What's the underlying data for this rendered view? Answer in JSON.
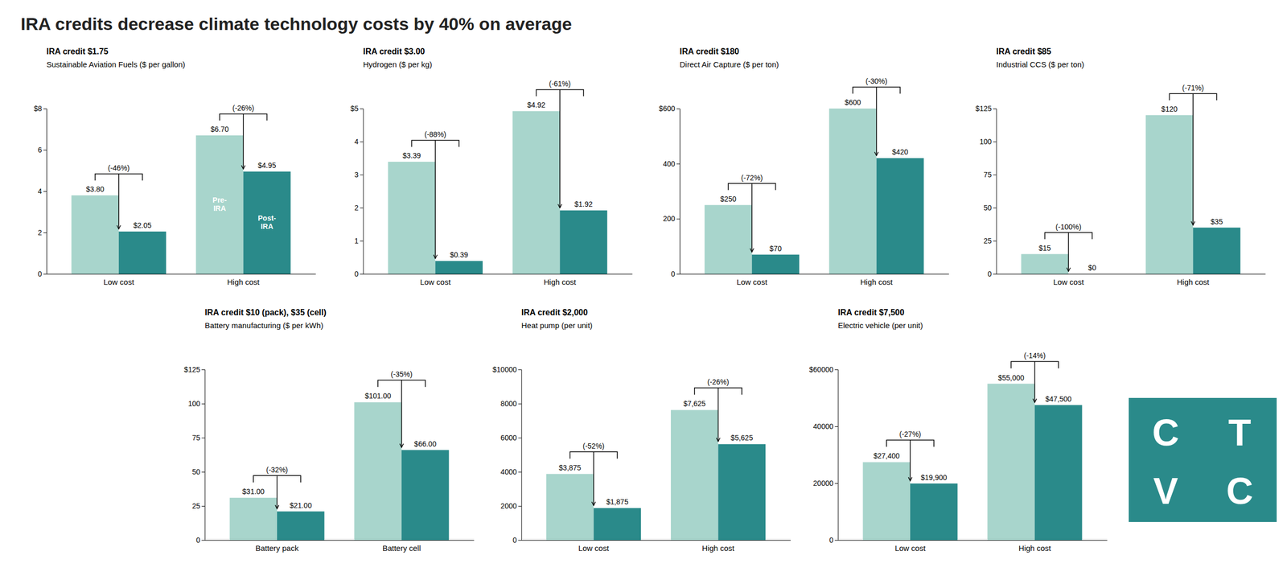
{
  "title": "IRA credits decrease climate technology costs by 40% on average",
  "chart_data": [
    {
      "type": "bar",
      "title": "Sustainable Aviation Fuels ($ per gallon)",
      "subtitle": "IRA credit $1.75",
      "categories": [
        "Low cost",
        "High cost"
      ],
      "series": [
        {
          "color": "#a8d5cc",
          "values": [
            3.8,
            6.7
          ],
          "value_labels": [
            "$3.80",
            "$6.70"
          ]
        },
        {
          "color": "#2a8a8a",
          "values": [
            2.05,
            4.95
          ],
          "value_labels": [
            "$2.05",
            "$4.95"
          ]
        }
      ],
      "ylim": [
        0,
        8
      ],
      "yticks": [
        0,
        2,
        4,
        6,
        {
          "value": 8,
          "label": "$8"
        }
      ],
      "grid": false,
      "data_labels": true,
      "annotations": [
        {
          "type": "bracket",
          "category": "Low cost",
          "text": "(-46%)"
        },
        {
          "type": "bracket",
          "category": "High cost",
          "text": "(-26%)"
        },
        {
          "type": "bar_text",
          "category": "High cost",
          "series": 0,
          "text": "Pre-\nIRA"
        },
        {
          "type": "bar_text",
          "category": "High cost",
          "series": 1,
          "text": "Post-\nIRA"
        }
      ]
    },
    {
      "type": "bar",
      "title": "Hydrogen ($ per kg)",
      "subtitle": "IRA credit $3.00",
      "categories": [
        "Low cost",
        "High cost"
      ],
      "series": [
        {
          "color": "#a8d5cc",
          "values": [
            3.39,
            4.92
          ],
          "value_labels": [
            "$3.39",
            "$4.92"
          ]
        },
        {
          "color": "#2a8a8a",
          "values": [
            0.39,
            1.92
          ],
          "value_labels": [
            "$0.39",
            "$1.92"
          ]
        }
      ],
      "ylim": [
        0,
        5
      ],
      "yticks": [
        0,
        1,
        2,
        3,
        4,
        {
          "value": 5,
          "label": "$5"
        }
      ],
      "grid": false,
      "data_labels": true,
      "annotations": [
        {
          "type": "bracket",
          "category": "Low cost",
          "text": "(-88%)"
        },
        {
          "type": "bracket",
          "category": "High cost",
          "text": "(-61%)"
        }
      ]
    },
    {
      "type": "bar",
      "title": "Direct Air Capture ($ per ton)",
      "subtitle": "IRA credit $180",
      "categories": [
        "Low cost",
        "High cost"
      ],
      "series": [
        {
          "color": "#a8d5cc",
          "values": [
            250,
            600
          ],
          "value_labels": [
            "$250",
            "$600"
          ]
        },
        {
          "color": "#2a8a8a",
          "values": [
            70,
            420
          ],
          "value_labels": [
            "$70",
            "$420"
          ]
        }
      ],
      "ylim": [
        0,
        600
      ],
      "yticks": [
        0,
        200,
        400,
        {
          "value": 600,
          "label": "$600"
        }
      ],
      "grid": false,
      "data_labels": true,
      "annotations": [
        {
          "type": "bracket",
          "category": "Low cost",
          "text": "(-72%)"
        },
        {
          "type": "bracket",
          "category": "High cost",
          "text": "(-30%)"
        }
      ]
    },
    {
      "type": "bar",
      "title": "Industrial CCS ($ per ton)",
      "subtitle": "IRA credit $85",
      "categories": [
        "Low cost",
        "High cost"
      ],
      "series": [
        {
          "color": "#a8d5cc",
          "values": [
            15,
            120
          ],
          "value_labels": [
            "$15",
            "$120"
          ]
        },
        {
          "color": "#2a8a8a",
          "values": [
            0,
            35
          ],
          "value_labels": [
            "$0",
            "$35"
          ]
        }
      ],
      "ylim": [
        0,
        125
      ],
      "yticks": [
        0,
        25,
        50,
        75,
        100,
        {
          "value": 125,
          "label": "$125"
        }
      ],
      "grid": false,
      "data_labels": true,
      "annotations": [
        {
          "type": "bracket",
          "category": "Low cost",
          "text": "(-100%)"
        },
        {
          "type": "bracket",
          "category": "High cost",
          "text": "(-71%)"
        }
      ]
    },
    {
      "type": "bar",
      "title": "Battery manufacturing ($ per kWh)",
      "subtitle": "IRA credit $10 (pack), $35 (cell)",
      "categories": [
        "Battery pack",
        "Battery cell"
      ],
      "series": [
        {
          "color": "#a8d5cc",
          "values": [
            31,
            101
          ],
          "value_labels": [
            "$31.00",
            "$101.00"
          ]
        },
        {
          "color": "#2a8a8a",
          "values": [
            21,
            66
          ],
          "value_labels": [
            "$21.00",
            "$66.00"
          ]
        }
      ],
      "ylim": [
        0,
        125
      ],
      "yticks": [
        0,
        25,
        50,
        75,
        100,
        {
          "value": 125,
          "label": "$125"
        }
      ],
      "grid": false,
      "data_labels": true,
      "annotations": [
        {
          "type": "bracket",
          "category": "Battery pack",
          "text": "(-32%)"
        },
        {
          "type": "bracket",
          "category": "Battery cell",
          "text": "(-35%)"
        }
      ]
    },
    {
      "type": "bar",
      "title": "Heat pump (per unit)",
      "subtitle": "IRA credit $2,000",
      "categories": [
        "Low cost",
        "High cost"
      ],
      "series": [
        {
          "color": "#a8d5cc",
          "values": [
            3875,
            7625
          ],
          "value_labels": [
            "$3,875",
            "$7,625"
          ]
        },
        {
          "color": "#2a8a8a",
          "values": [
            1875,
            5625
          ],
          "value_labels": [
            "$1,875",
            "$5,625"
          ]
        }
      ],
      "ylim": [
        0,
        10000
      ],
      "yticks": [
        0,
        2000,
        4000,
        6000,
        8000,
        {
          "value": 10000,
          "label": "$10000"
        }
      ],
      "grid": false,
      "data_labels": true,
      "annotations": [
        {
          "type": "bracket",
          "category": "Low cost",
          "text": "(-52%)"
        },
        {
          "type": "bracket",
          "category": "High cost",
          "text": "(-26%)"
        }
      ]
    },
    {
      "type": "bar",
      "title": "Electric vehicle (per unit)",
      "subtitle": "IRA credit $7,500",
      "categories": [
        "Low cost",
        "High cost"
      ],
      "series": [
        {
          "color": "#a8d5cc",
          "values": [
            27400,
            55000
          ],
          "value_labels": [
            "$27,400",
            "$55,000"
          ]
        },
        {
          "color": "#2a8a8a",
          "values": [
            19900,
            47500
          ],
          "value_labels": [
            "$19,900",
            "$47,500"
          ]
        }
      ],
      "ylim": [
        0,
        60000
      ],
      "yticks": [
        0,
        20000,
        40000,
        {
          "value": 60000,
          "label": "$60000"
        }
      ],
      "grid": false,
      "data_labels": true,
      "annotations": [
        {
          "type": "bracket",
          "category": "Low cost",
          "text": "(-27%)"
        },
        {
          "type": "bracket",
          "category": "High cost",
          "text": "(-14%)"
        }
      ]
    }
  ],
  "logo": {
    "annotations": [
      "C",
      "T",
      "V",
      "C"
    ],
    "color": "#2a8a8a"
  }
}
